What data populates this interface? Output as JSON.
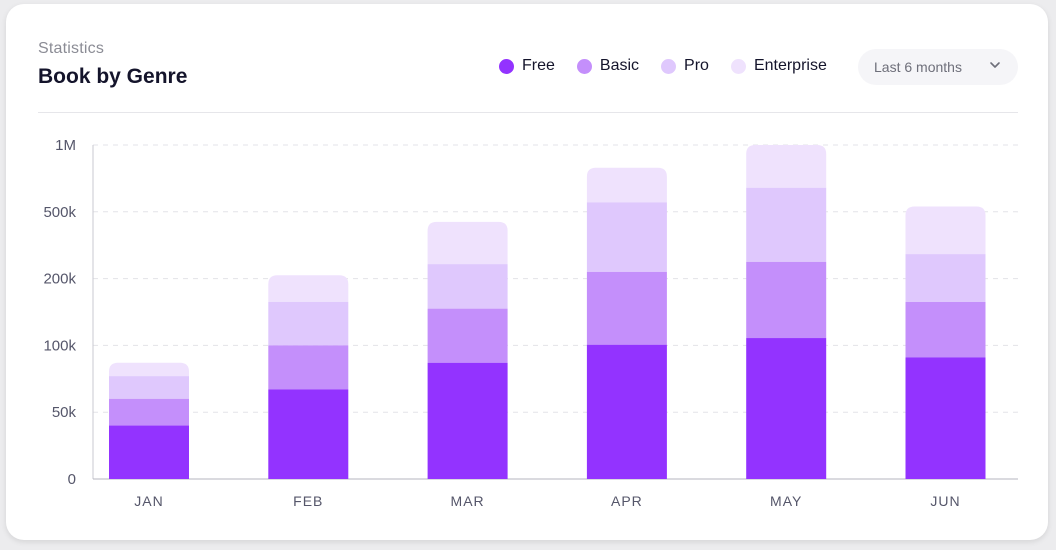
{
  "header": {
    "subtitle": "Statistics",
    "title": "Book by Genre"
  },
  "dropdown": {
    "selected": "Last 6 months",
    "icon": "chevron-down-icon"
  },
  "colors": {
    "free": "#9333ff",
    "basic": "#c48ffb",
    "pro": "#dfc8fd",
    "enterprise": "#efe2fd",
    "grid": "#e3e3e8",
    "axis_text": "#55566a"
  },
  "chart_data": {
    "type": "bar",
    "stacked": true,
    "title": "Book by Genre",
    "xlabel": "",
    "ylabel": "",
    "categories": [
      "JAN",
      "FEB",
      "MAR",
      "APR",
      "MAY",
      "JUN"
    ],
    "y_ticks": [
      0,
      50000,
      100000,
      200000,
      500000,
      1000000
    ],
    "y_tick_labels": [
      "0",
      "50k",
      "100k",
      "200k",
      "500k",
      "1M"
    ],
    "y_scale": "piecewise-uniform between printed ticks",
    "ylim": [
      0,
      1000000
    ],
    "grid": true,
    "legend_position": "top-right",
    "series": [
      {
        "name": "Free",
        "color": "#9333ff",
        "cumulative_values": [
          40000,
          67000,
          87000,
          101000,
          111000,
          91000
        ]
      },
      {
        "name": "Basic",
        "color": "#c48ffb",
        "cumulative_values": [
          60000,
          100000,
          155000,
          230000,
          275000,
          165000
        ]
      },
      {
        "name": "Pro",
        "color": "#dfc8fd",
        "cumulative_values": [
          77000,
          165000,
          265000,
          570000,
          680000,
          310000
        ]
      },
      {
        "name": "Enterprise",
        "color": "#efe2fd",
        "cumulative_values": [
          87000,
          215000,
          455000,
          830000,
          1000000,
          540000
        ]
      }
    ]
  }
}
